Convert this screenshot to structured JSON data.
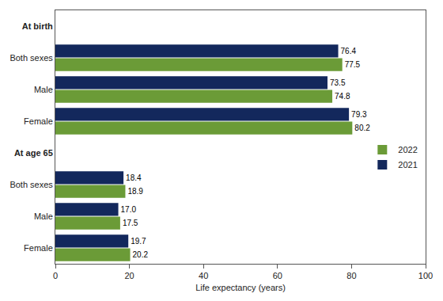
{
  "chart_data": {
    "type": "bar",
    "orientation": "horizontal",
    "categories": [
      "At birth",
      "Both sexes",
      "Male",
      "Female",
      "At age 65",
      "Both sexes",
      "Male",
      "Female"
    ],
    "series": [
      {
        "name": "2021",
        "color": "#13285c",
        "values": [
          null,
          76.4,
          73.5,
          79.3,
          null,
          18.4,
          17.0,
          19.7
        ],
        "value_labels": [
          null,
          "76.4",
          "73.5",
          "79.3",
          null,
          "18.4",
          "17.0",
          "19.7"
        ]
      },
      {
        "name": "2022",
        "color": "#6b9b37",
        "values": [
          null,
          77.5,
          74.8,
          80.2,
          null,
          18.9,
          17.5,
          20.2
        ],
        "value_labels": [
          null,
          "77.5",
          "74.8",
          "80.2",
          null,
          "18.9",
          "17.5",
          "20.2"
        ]
      }
    ],
    "xlabel": "Life expectancy (years)",
    "xlim": [
      0,
      100
    ],
    "xticks": [
      0,
      20,
      40,
      60,
      80,
      100
    ],
    "grid": false,
    "legend": "right",
    "data_labels": true
  }
}
